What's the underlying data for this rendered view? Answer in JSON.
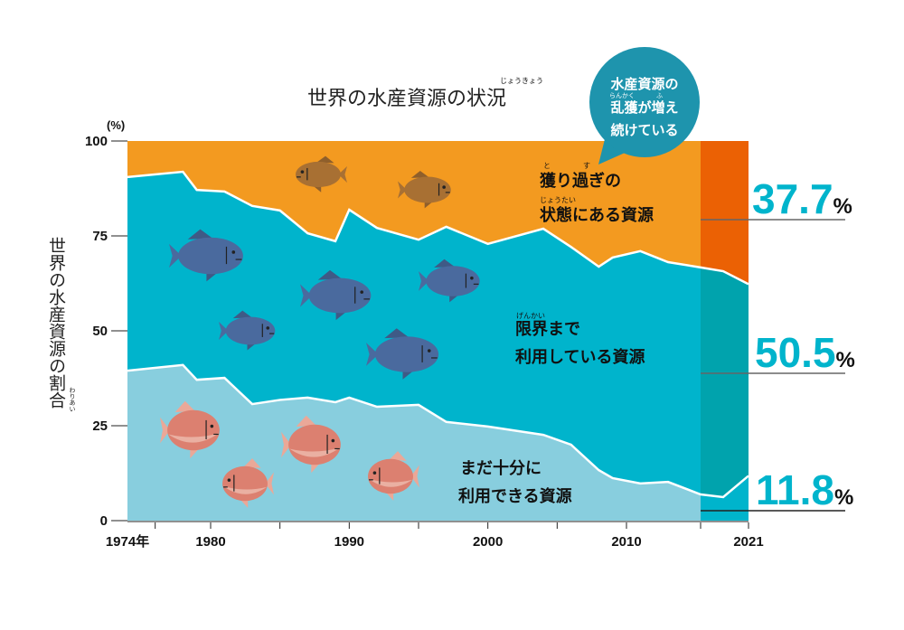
{
  "title": "世界の水産資源の状況",
  "title_ruby": "じょうきょう",
  "bubble": {
    "line1": "水産資源の",
    "line2": "乱獲が増え",
    "line3": "続けている",
    "ruby_rankaku": "らんかく",
    "ruby_fu": "ふ",
    "color": "#1E94AD"
  },
  "chart_data": {
    "type": "area",
    "stacked": true,
    "ylabel": "世界の水産資源の割合",
    "ylabel_ruby": "わりあい",
    "yunit": "(%)",
    "ylim": [
      0,
      100
    ],
    "yticks": [
      "100",
      "75",
      "50",
      "25",
      "0"
    ],
    "xlim": [
      1974,
      2021
    ],
    "xtick_labels": [
      "1974年",
      "1980",
      "1990",
      "2000",
      "2010",
      "2021"
    ],
    "x": [
      1974,
      1978,
      1979,
      1981,
      1983,
      1985,
      1987,
      1989,
      1990,
      1992,
      1995,
      1997,
      2000,
      2004,
      2006,
      2008,
      2009,
      2011,
      2013,
      2015,
      2017,
      2021
    ],
    "series": [
      {
        "name": "まだ十分に利用できる資源",
        "color": "#88CEDE",
        "highlight_color": "#00B4CC",
        "values": [
          39.5,
          41.0,
          37.1,
          37.6,
          30.7,
          31.8,
          32.4,
          31.2,
          32.4,
          30.0,
          30.5,
          26.0,
          24.8,
          22.6,
          20.0,
          13.3,
          11.2,
          9.8,
          10.2,
          6.9,
          6.2,
          11.8
        ]
      },
      {
        "name": "限界まで利用している資源",
        "color": "#00B4CC",
        "highlight_color": "#00A3AD",
        "values": [
          51.0,
          50.9,
          50.0,
          49.1,
          52.2,
          49.9,
          43.3,
          42.4,
          49.5,
          47.1,
          43.5,
          51.4,
          48.1,
          54.3,
          52.1,
          53.6,
          58.1,
          61.2,
          57.9,
          59.8,
          59.5,
          50.5
        ]
      },
      {
        "name": "獲り過ぎの状態にある資源",
        "color": "#F39A20",
        "highlight_color": "#EB6104",
        "values": [
          9.5,
          8.1,
          12.9,
          13.3,
          17.1,
          18.3,
          24.3,
          26.4,
          18.1,
          22.9,
          26.0,
          22.6,
          27.1,
          23.1,
          27.9,
          33.1,
          30.7,
          29.0,
          31.9,
          33.3,
          34.3,
          37.7
        ]
      }
    ],
    "highlight_range": [
      2015,
      2021
    ],
    "annotations": {
      "overfished": {
        "line1": "獲り過ぎの",
        "line2": "状態にある資源",
        "ruby_to": "と",
        "ruby_su": "す",
        "ruby_joutai": "じょうたい"
      },
      "maximal": {
        "line1": "限界まで",
        "line2": "利用している資源",
        "ruby_genkai": "げんかい"
      },
      "under": {
        "line1": "まだ十分に",
        "line2": "利用できる資源"
      }
    },
    "latest_values": [
      {
        "value": "37.7",
        "unit": "%"
      },
      {
        "value": "50.5",
        "unit": "%"
      },
      {
        "value": "11.8",
        "unit": "%"
      }
    ],
    "latest_color": "#00B4CC"
  },
  "fish_colors": {
    "overfished": "#A87033",
    "maximal": "#4A6A9E",
    "under": "#DC8070"
  }
}
